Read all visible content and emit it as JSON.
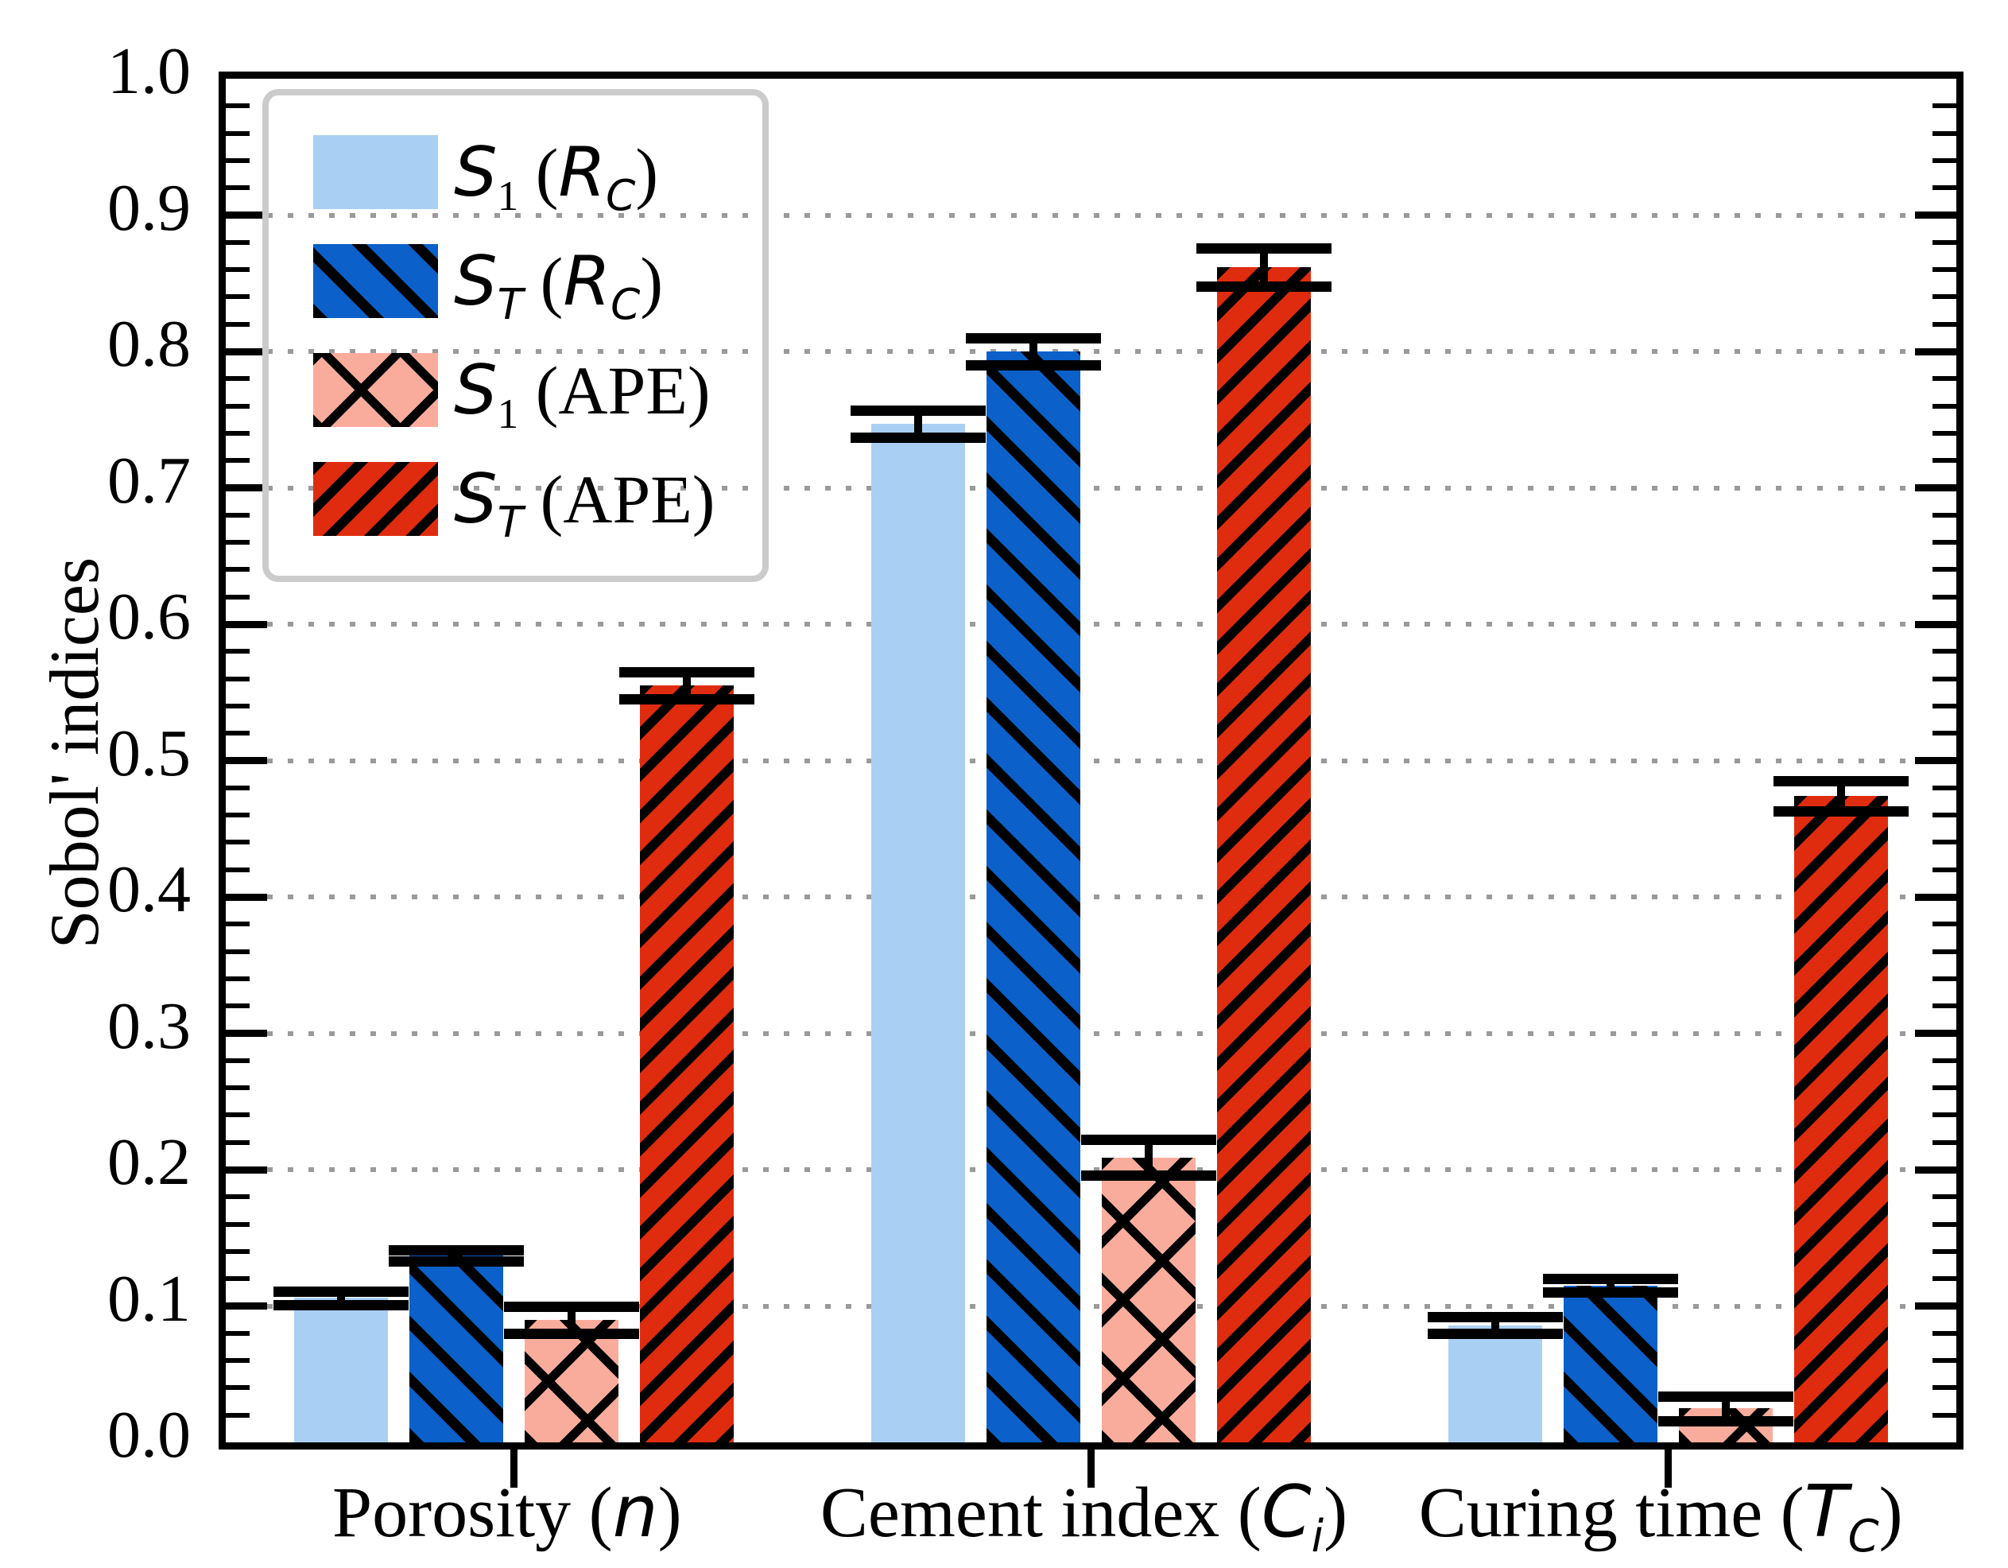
{
  "chart_data": {
    "type": "bar",
    "title": "",
    "xlabel": "",
    "ylabel": "Sobol' indices",
    "ylim": [
      0.0,
      1.0
    ],
    "y_major_tick_labels": [
      "0.0",
      "0.1",
      "0.2",
      "0.3",
      "0.4",
      "0.5",
      "0.6",
      "0.7",
      "0.8",
      "0.9",
      "1.0"
    ],
    "y_major_tick_values": [
      0.0,
      0.1,
      0.2,
      0.3,
      0.4,
      0.5,
      0.6,
      0.7,
      0.8,
      0.9,
      1.0
    ],
    "y_minor_tick_step": 0.02,
    "grid": {
      "axis": "y",
      "style": "dotted",
      "color": "#9a9a9a",
      "positions": [
        0.1,
        0.2,
        0.3,
        0.4,
        0.5,
        0.6,
        0.7,
        0.8,
        0.9
      ]
    },
    "legend_position": "upper left",
    "categories": [
      "Porosity (n)",
      "Cement index (C_i)",
      "Curing time (T_C)"
    ],
    "categories_html": [
      "Porosity (<i>n</i>)",
      "Cement index (<i>C<sub>i</sub></i>)",
      "Curing time (<i>T<sub>C</sub></i>)"
    ],
    "series": [
      {
        "name": "S1 (RC)",
        "label_html": "<i>S</i><sub>1</sub> (<i>R<sub>C</sub></i>)",
        "color": "#A9CFF3",
        "hatch": "none",
        "values": [
          0.106,
          0.747,
          0.086
        ],
        "errors": [
          0.005,
          0.01,
          0.006
        ]
      },
      {
        "name": "ST (RC)",
        "label_html": "<i>S<sub>T</sub></i> (<i>R<sub>C</sub></i>)",
        "color": "#0B60C9",
        "hatch": "backslash",
        "values": [
          0.137,
          0.8,
          0.115
        ],
        "errors": [
          0.004,
          0.01,
          0.005
        ]
      },
      {
        "name": "S1 (APE)",
        "label_html": "<i>S</i><sub>1</sub> (APE)",
        "color": "#FAAC9C",
        "hatch": "cross",
        "values": [
          0.09,
          0.209,
          0.025
        ],
        "errors": [
          0.01,
          0.013,
          0.009
        ]
      },
      {
        "name": "ST (APE)",
        "label_html": "<i>S<sub>T</sub></i> (APE)",
        "color": "#DF2B0E",
        "hatch": "slash",
        "values": [
          0.555,
          0.862,
          0.474
        ],
        "errors": [
          0.01,
          0.014,
          0.011
        ]
      }
    ]
  },
  "colors": {
    "axis": "#000000",
    "error_bar": "#000000",
    "legend_border": "#cbcbcb",
    "background": "#ffffff"
  }
}
